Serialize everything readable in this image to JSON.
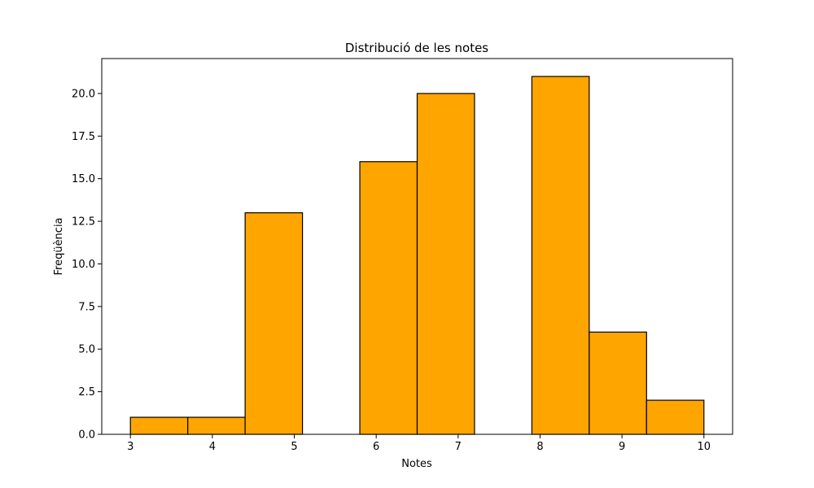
{
  "chart_data": {
    "type": "bar",
    "title": "Distribució de les notes",
    "xlabel": "Notes",
    "ylabel": "Freqüència",
    "xlim": [
      2.65,
      10.35
    ],
    "ylim": [
      0,
      22.05
    ],
    "xticks": [
      3,
      4,
      5,
      6,
      7,
      8,
      9,
      10
    ],
    "yticks": [
      0.0,
      2.5,
      5.0,
      7.5,
      10.0,
      12.5,
      15.0,
      17.5,
      20.0
    ],
    "bin_edges": [
      3.0,
      3.7,
      4.4,
      5.1,
      5.8,
      6.5,
      7.2,
      7.9,
      8.6,
      9.3,
      10.0
    ],
    "values": [
      1,
      1,
      13,
      0,
      16,
      20,
      0,
      21,
      6,
      2
    ],
    "bar_color": "#ffa500",
    "edge_color": "#000000",
    "grid": false,
    "legend": false
  }
}
